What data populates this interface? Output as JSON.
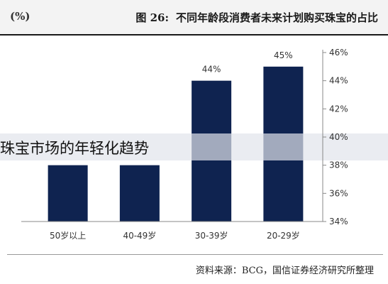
{
  "header": {
    "left_title": "(%)",
    "figure_label": "图 26:",
    "right_title": "不同年龄段消费者未来计划购买珠宝的占比"
  },
  "overlay_caption": "珠宝市场的年轻化趋势",
  "source": "资料来源：BCG，国信证券经济研究所整理",
  "chart_data": {
    "type": "bar",
    "title": "不同年龄段消费者未来计划购买珠宝的占比",
    "unit": "(%)",
    "categories": [
      "50岁以上",
      "40-49岁",
      "30-39岁",
      "20-29岁"
    ],
    "values": [
      38,
      38,
      44,
      45
    ],
    "value_labels": [
      "",
      "",
      "44%",
      "45%"
    ],
    "ylim": [
      34,
      46
    ],
    "yticks": [
      34,
      36,
      38,
      40,
      42,
      44,
      46
    ],
    "ytick_labels": [
      "34%",
      "36%",
      "38%",
      "40%",
      "42%",
      "44%",
      "46%"
    ],
    "y_axis_side": "right",
    "bar_color": "#0f2350",
    "grid": false,
    "legend": "none"
  }
}
